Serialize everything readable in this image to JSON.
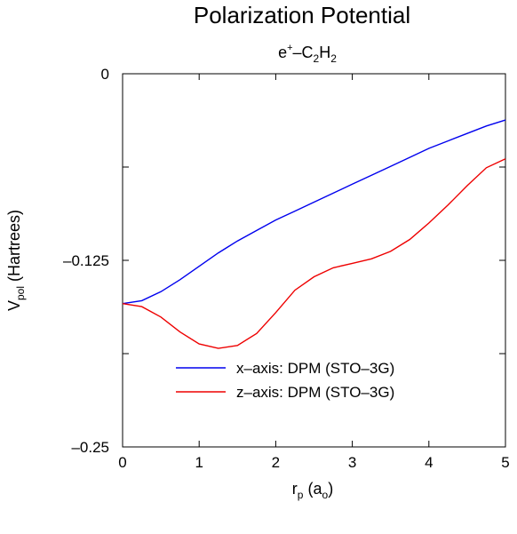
{
  "chart_data": {
    "type": "line",
    "title": "Polarization Potential",
    "subtitle": {
      "base": "e",
      "sup": "+",
      "rest": "–C",
      "sub1": "2",
      "mid": "H",
      "sub2": "2"
    },
    "xlabel": {
      "base": "r",
      "sub": "p",
      "rest1": " (a",
      "sub2": "o",
      "rest2": ")"
    },
    "ylabel": {
      "base": "V",
      "sub": "pol",
      "rest": " (Hartrees)"
    },
    "xlim": [
      0,
      5
    ],
    "ylim": [
      -0.25,
      0
    ],
    "x_ticks": [
      0,
      1,
      2,
      3,
      4,
      5
    ],
    "x_tick_labels": [
      "0",
      "1",
      "2",
      "3",
      "4",
      "5"
    ],
    "y_ticks": [
      0,
      -0.125,
      -0.25
    ],
    "y_tick_labels": [
      "0",
      "–0.125",
      "–0.25"
    ],
    "grid": false,
    "legend_position": "bottom-center inside plot",
    "series": [
      {
        "name": "x–axis: DPM (STO–3G)",
        "color": "#0000ee",
        "x": [
          0,
          0.25,
          0.5,
          0.75,
          1.0,
          1.25,
          1.5,
          1.75,
          2.0,
          2.25,
          2.5,
          2.75,
          3.0,
          3.25,
          3.5,
          3.75,
          4.0,
          4.25,
          4.5,
          4.75,
          5.0
        ],
        "y": [
          -0.154,
          -0.152,
          -0.146,
          -0.138,
          -0.129,
          -0.12,
          -0.112,
          -0.105,
          -0.098,
          -0.092,
          -0.086,
          -0.08,
          -0.074,
          -0.068,
          -0.062,
          -0.056,
          -0.05,
          -0.045,
          -0.04,
          -0.035,
          -0.031
        ]
      },
      {
        "name": "z–axis: DPM (STO–3G)",
        "color": "#ee0000",
        "x": [
          0,
          0.25,
          0.5,
          0.75,
          1.0,
          1.25,
          1.5,
          1.75,
          2.0,
          2.25,
          2.5,
          2.75,
          3.0,
          3.25,
          3.5,
          3.75,
          4.0,
          4.25,
          4.5,
          4.75,
          5.0
        ],
        "y": [
          -0.154,
          -0.156,
          -0.163,
          -0.173,
          -0.181,
          -0.184,
          -0.182,
          -0.174,
          -0.16,
          -0.145,
          -0.136,
          -0.13,
          -0.127,
          -0.124,
          -0.119,
          -0.111,
          -0.1,
          -0.088,
          -0.075,
          -0.063,
          -0.057
        ]
      }
    ]
  }
}
